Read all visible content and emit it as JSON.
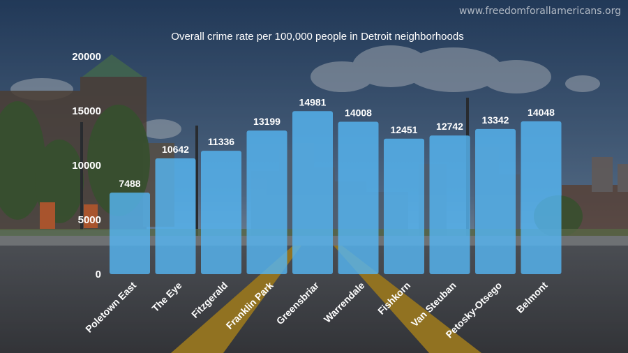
{
  "watermark": "www.freedomforallamericans.org",
  "colors": {
    "bar": "#56b4f0",
    "text": "#ffffff",
    "sky_top": "#2b4a70",
    "sky_bottom": "#8a9bb0",
    "road": "#4a4a4a",
    "road_stripe": "#c79a1e"
  },
  "chart_data": {
    "type": "bar",
    "title": "Overall crime rate per 100,000 people in Detroit neighborhoods",
    "xlabel": "",
    "ylabel": "",
    "ylim": [
      0,
      20000
    ],
    "yticks": [
      "0",
      "5000",
      "10000",
      "15000",
      "20000"
    ],
    "grid": false,
    "categories": [
      "Poletown East",
      "The Eye",
      "Fitzgerald",
      "Franklin Park",
      "Greensbriar",
      "Warrendale",
      "Fishkorn",
      "Van Steuban",
      "Petosky-Otsego",
      "Belmont"
    ],
    "values": [
      7488,
      10642,
      11336,
      13199,
      14981,
      14008,
      12451,
      12742,
      13342,
      14048
    ],
    "value_labels": [
      "7488",
      "10642",
      "11336",
      "13199",
      "14981",
      "14008",
      "12451",
      "12742",
      "13342",
      "14048"
    ]
  }
}
